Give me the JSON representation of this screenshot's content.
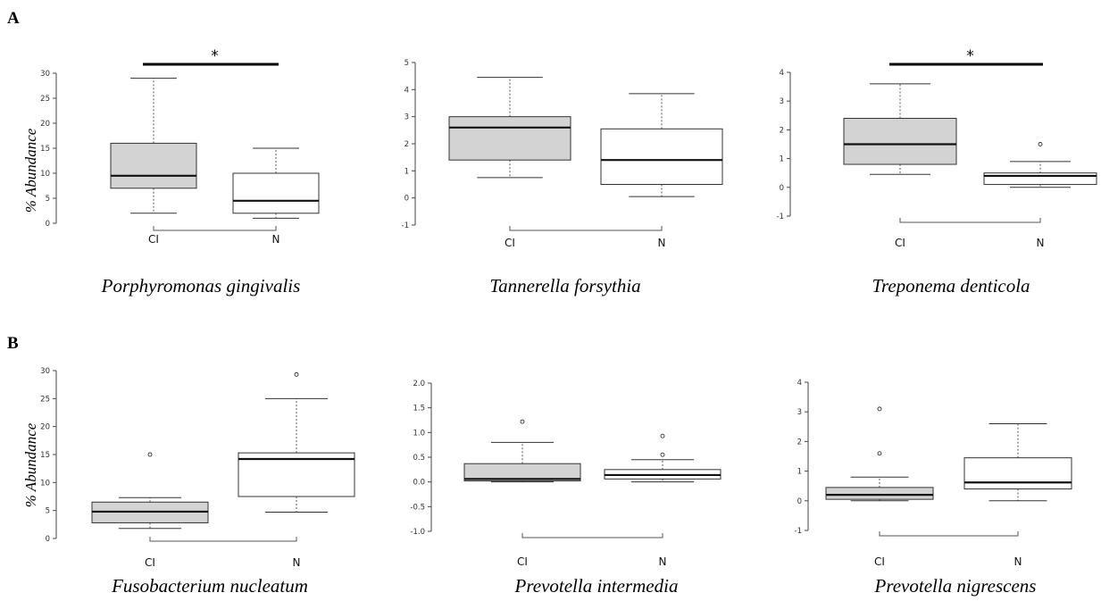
{
  "panels": [
    {
      "letter": "A"
    },
    {
      "letter": "B"
    }
  ],
  "chart_data": [
    {
      "type": "boxplot",
      "panel": "A",
      "title": "Porphyromonas gingivalis",
      "ylabel": "% Abundance",
      "ylim": [
        0,
        30
      ],
      "yticks": [
        "0",
        "5",
        "10",
        "15",
        "20",
        "25",
        "30"
      ],
      "categories": [
        "CI",
        "N"
      ],
      "fills": [
        "#d3d3d3",
        "#ffffff"
      ],
      "significance": "*",
      "boxes": [
        {
          "whisker_low": 2,
          "q1": 7,
          "median": 9.5,
          "q3": 16,
          "whisker_high": 29,
          "outliers": []
        },
        {
          "whisker_low": 1,
          "q1": 2,
          "median": 4.5,
          "q3": 10,
          "whisker_high": 15,
          "outliers": []
        }
      ]
    },
    {
      "type": "boxplot",
      "panel": "A",
      "title": "Tannerella forsythia",
      "ylabel": "",
      "ylim": [
        -1,
        5
      ],
      "yticks": [
        "-1",
        "0",
        "1",
        "2",
        "3",
        "4",
        "5"
      ],
      "categories": [
        "CI",
        "N"
      ],
      "fills": [
        "#d3d3d3",
        "#ffffff"
      ],
      "significance": "",
      "boxes": [
        {
          "whisker_low": 0.75,
          "q1": 1.4,
          "median": 2.6,
          "q3": 3.0,
          "whisker_high": 4.45,
          "outliers": []
        },
        {
          "whisker_low": 0.05,
          "q1": 0.5,
          "median": 1.4,
          "q3": 2.55,
          "whisker_high": 3.85,
          "outliers": []
        }
      ]
    },
    {
      "type": "boxplot",
      "panel": "A",
      "title": "Treponema denticola",
      "ylabel": "",
      "ylim": [
        -1,
        4
      ],
      "yticks": [
        "-1",
        "0",
        "1",
        "2",
        "3",
        "4"
      ],
      "categories": [
        "CI",
        "N"
      ],
      "fills": [
        "#d3d3d3",
        "#ffffff"
      ],
      "significance": "*",
      "boxes": [
        {
          "whisker_low": 0.45,
          "q1": 0.8,
          "median": 1.5,
          "q3": 2.4,
          "whisker_high": 3.6,
          "outliers": []
        },
        {
          "whisker_low": 0.0,
          "q1": 0.1,
          "median": 0.4,
          "q3": 0.5,
          "whisker_high": 0.9,
          "outliers": [
            1.5
          ]
        }
      ]
    },
    {
      "type": "boxplot",
      "panel": "B",
      "title": "Fusobacterium nucleatum",
      "ylabel": "% Abundance",
      "ylim": [
        0,
        30
      ],
      "yticks": [
        "0",
        "5",
        "10",
        "15",
        "20",
        "25",
        "30"
      ],
      "categories": [
        "CI",
        "N"
      ],
      "fills": [
        "#d3d3d3",
        "#ffffff"
      ],
      "significance": "",
      "boxes": [
        {
          "whisker_low": 1.8,
          "q1": 2.8,
          "median": 4.8,
          "q3": 6.5,
          "whisker_high": 7.3,
          "outliers": [
            15
          ]
        },
        {
          "whisker_low": 4.7,
          "q1": 7.5,
          "median": 14.2,
          "q3": 15.3,
          "whisker_high": 25,
          "outliers": [
            29.3
          ]
        }
      ]
    },
    {
      "type": "boxplot",
      "panel": "B",
      "title": "Prevotella intermedia",
      "ylabel": "",
      "ylim": [
        -1,
        2
      ],
      "yticks": [
        "-1.0",
        "-0.5",
        "0.0",
        "0.5",
        "1.0",
        "1.5",
        "2.0"
      ],
      "categories": [
        "CI",
        "N"
      ],
      "fills": [
        "#d3d3d3",
        "#ffffff"
      ],
      "significance": "",
      "boxes": [
        {
          "whisker_low": 0.0,
          "q1": 0.02,
          "median": 0.06,
          "q3": 0.37,
          "whisker_high": 0.8,
          "outliers": [
            1.22
          ]
        },
        {
          "whisker_low": 0.0,
          "q1": 0.06,
          "median": 0.14,
          "q3": 0.25,
          "whisker_high": 0.45,
          "outliers": [
            0.55,
            0.93
          ]
        }
      ]
    },
    {
      "type": "boxplot",
      "panel": "B",
      "title": "Prevotella nigrescens",
      "ylabel": "",
      "ylim": [
        -1,
        4
      ],
      "yticks": [
        "-1",
        "0",
        "1",
        "2",
        "3",
        "4"
      ],
      "categories": [
        "CI",
        "N"
      ],
      "fills": [
        "#d3d3d3",
        "#ffffff"
      ],
      "significance": "",
      "boxes": [
        {
          "whisker_low": 0.0,
          "q1": 0.05,
          "median": 0.2,
          "q3": 0.45,
          "whisker_high": 0.8,
          "outliers": [
            1.6,
            3.1
          ]
        },
        {
          "whisker_low": 0.0,
          "q1": 0.4,
          "median": 0.62,
          "q3": 1.45,
          "whisker_high": 2.6,
          "outliers": []
        }
      ]
    }
  ]
}
